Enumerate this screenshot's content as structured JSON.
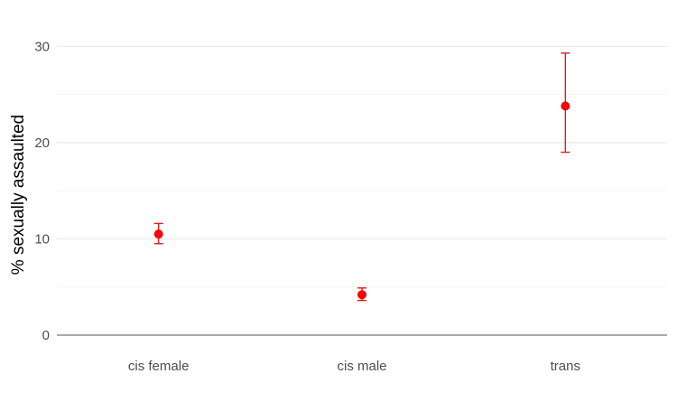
{
  "chart_data": {
    "type": "scatter",
    "title": "",
    "xlabel": "",
    "ylabel": "% sexually assaulted",
    "categories": [
      "cis female",
      "cis male",
      "trans"
    ],
    "series": [
      {
        "values": [
          10.5,
          4.2,
          23.8
        ],
        "error_low": [
          9.5,
          3.6,
          19.0
        ],
        "error_high": [
          11.6,
          4.9,
          29.3
        ]
      }
    ],
    "ylim": [
      0,
      32
    ],
    "yticks": [
      0,
      10,
      20,
      30
    ],
    "ytick_labels": [
      "0",
      "10",
      "20",
      "30"
    ],
    "grid": true,
    "legend": "none",
    "colors": {
      "point": "#ff0000",
      "errorbar": "#e31a1c",
      "grid": "#ebebeb",
      "baseline": "#555555",
      "tick_text": "#4d4d4d"
    }
  }
}
